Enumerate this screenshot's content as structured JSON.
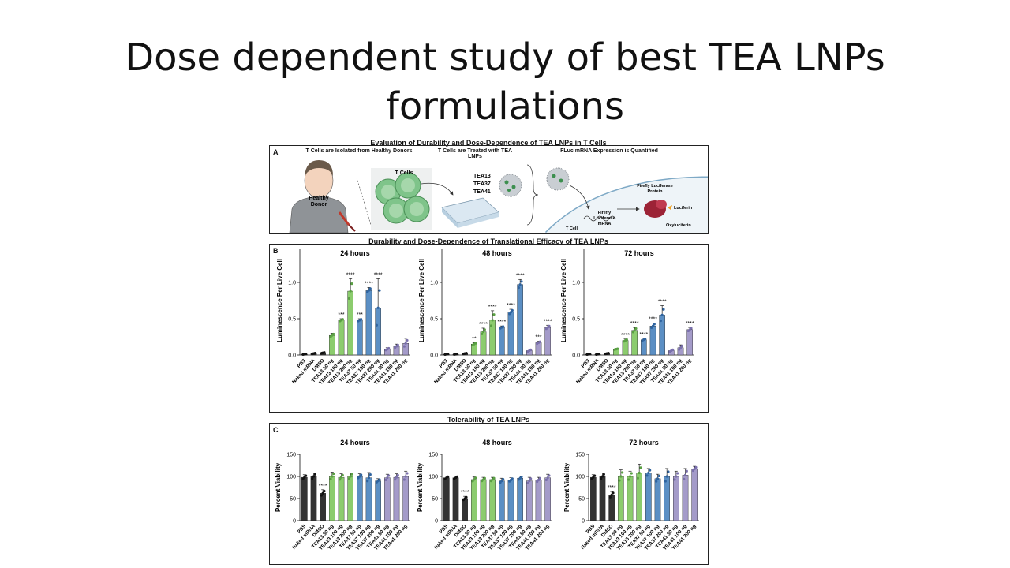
{
  "slide": {
    "title_line1": "Dose dependent study of best TEA LNPs",
    "title_line2": "formulations"
  },
  "figure": {
    "panel_a": {
      "header": "Evaluation of Durability and Dose-Dependence of TEA LNPs in T Cells",
      "letter": "A",
      "step1": "T Cells are Isolated from Healthy Donors",
      "donor_label": "Healthy Donor",
      "tcells_label": "T Cells",
      "step2": "T Cells are Treated with TEA LNPs",
      "formulations": [
        "TEA13",
        "TEA37",
        "TEA41"
      ],
      "step3": "FLuc mRNA Expression is Quantified",
      "protein_label": "Firefly Luciferase Protein",
      "mrna_label": "Firefly Luciferase mRNA",
      "luciferin_label": "Luciferin",
      "oxyluciferin_label": "Oxyluciferin",
      "tcell_label": "T Cell"
    },
    "panel_b": {
      "header": "Durability and Dose-Dependence of Translational Efficacy of TEA LNPs",
      "letter": "B"
    },
    "panel_c": {
      "header": "Tolerability of TEA LNPs",
      "letter": "C"
    }
  },
  "chart_data": [
    {
      "type": "bar",
      "panel": "B",
      "title": "24 hours",
      "ylabel": "Luminescence Per Live Cell",
      "ylim": [
        0,
        1.5
      ],
      "yticks": [
        "0.0",
        "0.5",
        "1.0",
        "1.5"
      ],
      "categories": [
        "PBS",
        "Naked mRNA",
        "DMSO",
        "TEA13 50 ng",
        "TEA13 100 ng",
        "TEA13 200 ng",
        "TEA37 50 ng",
        "TEA37 100 ng",
        "TEA37 200 ng",
        "TEA41 50 ng",
        "TEA41 100 ng",
        "TEA41 200 ng"
      ],
      "values": [
        0.01,
        0.02,
        0.03,
        0.27,
        0.48,
        0.88,
        0.48,
        0.89,
        0.65,
        0.08,
        0.12,
        0.16
      ],
      "errors": [
        0.005,
        0.01,
        0.01,
        0.03,
        0.02,
        0.17,
        0.02,
        0.04,
        0.4,
        0.02,
        0.03,
        0.07
      ],
      "significance": [
        "",
        "",
        "",
        "",
        "***",
        "****",
        "***",
        "****",
        "****",
        "",
        "",
        ""
      ]
    },
    {
      "type": "bar",
      "panel": "B",
      "title": "48 hours",
      "ylabel": "Luminescence Per Live Cell",
      "ylim": [
        0,
        1.5
      ],
      "yticks": [
        "0.0",
        "0.5",
        "1.0",
        "1.5"
      ],
      "categories": [
        "PBS",
        "Naked mRNA",
        "DMSO",
        "TEA13 50 ng",
        "TEA13 100 ng",
        "TEA13 200 ng",
        "TEA37 50 ng",
        "TEA37 100 ng",
        "TEA37 200 ng",
        "TEA41 50 ng",
        "TEA41 100 ng",
        "TEA41 200 ng"
      ],
      "values": [
        0.01,
        0.01,
        0.02,
        0.15,
        0.32,
        0.48,
        0.38,
        0.59,
        0.97,
        0.06,
        0.17,
        0.38
      ],
      "errors": [
        0.005,
        0.005,
        0.01,
        0.02,
        0.05,
        0.13,
        0.02,
        0.04,
        0.07,
        0.02,
        0.02,
        0.03
      ],
      "significance": [
        "",
        "",
        "",
        "**",
        "****",
        "****",
        "****",
        "****",
        "****",
        "",
        "***",
        "****"
      ]
    },
    {
      "type": "bar",
      "panel": "B",
      "title": "72 hours",
      "ylabel": "Luminescence Per Live Cell",
      "ylim": [
        0,
        1.5
      ],
      "yticks": [
        "0.0",
        "0.5",
        "1.0",
        "1.5"
      ],
      "categories": [
        "PBS",
        "Naked mRNA",
        "DMSO",
        "TEA13 50 ng",
        "TEA13 100 ng",
        "TEA13 200 ng",
        "TEA37 50 ng",
        "TEA37 100 ng",
        "TEA37 200 ng",
        "TEA41 50 ng",
        "TEA41 100 ng",
        "TEA41 200 ng"
      ],
      "values": [
        0.01,
        0.01,
        0.02,
        0.08,
        0.2,
        0.34,
        0.21,
        0.4,
        0.55,
        0.06,
        0.1,
        0.35
      ],
      "errors": [
        0.005,
        0.005,
        0.01,
        0.01,
        0.02,
        0.04,
        0.02,
        0.04,
        0.13,
        0.02,
        0.04,
        0.03
      ],
      "significance": [
        "",
        "",
        "",
        "",
        "****",
        "****",
        "****",
        "****",
        "****",
        "",
        "",
        "****"
      ]
    },
    {
      "type": "bar",
      "panel": "C",
      "title": "24 hours",
      "ylabel": "Percent Viability",
      "ylim": [
        0,
        150
      ],
      "yticks": [
        "0",
        "50",
        "100",
        "150"
      ],
      "categories": [
        "PBS",
        "Naked mRNA",
        "DMSO",
        "TEA13 50 ng",
        "TEA13 100 ng",
        "TEA13 200 ng",
        "TEA37 50 ng",
        "TEA37 100 ng",
        "TEA37 200 ng",
        "TEA41 50 ng",
        "TEA41 100 ng",
        "TEA41 200 ng"
      ],
      "values": [
        98,
        100,
        62,
        100,
        98,
        100,
        100,
        97,
        90,
        97,
        98,
        100
      ],
      "errors": [
        6,
        8,
        8,
        10,
        8,
        8,
        6,
        12,
        5,
        8,
        8,
        12
      ],
      "significance": [
        "",
        "",
        "****",
        "",
        "",
        "",
        "",
        "",
        "",
        "",
        "",
        ""
      ]
    },
    {
      "type": "bar",
      "panel": "C",
      "title": "48 hours",
      "ylabel": "Percent Viability",
      "ylim": [
        0,
        150
      ],
      "yticks": [
        "0",
        "50",
        "100",
        "150"
      ],
      "categories": [
        "PBS",
        "Naked mRNA",
        "DMSO",
        "TEA13 50 ng",
        "TEA13 100 ng",
        "TEA13 200 ng",
        "TEA37 50 ng",
        "TEA37 100 ng",
        "TEA37 200 ng",
        "TEA41 50 ng",
        "TEA41 100 ng",
        "TEA41 200 ng"
      ],
      "values": [
        97,
        97,
        50,
        93,
        93,
        93,
        90,
        92,
        96,
        90,
        92,
        97
      ],
      "errors": [
        4,
        4,
        5,
        6,
        5,
        5,
        6,
        5,
        5,
        8,
        6,
        8
      ],
      "significance": [
        "",
        "",
        "****",
        "",
        "",
        "",
        "",
        "",
        "",
        "",
        "",
        ""
      ]
    },
    {
      "type": "bar",
      "panel": "C",
      "title": "72 hours",
      "ylabel": "Percent Viability",
      "ylim": [
        0,
        150
      ],
      "yticks": [
        "0",
        "50",
        "100",
        "150"
      ],
      "categories": [
        "PBS",
        "Naked mRNA",
        "DMSO",
        "TEA13 50 ng",
        "TEA13 100 ng",
        "TEA13 200 ng",
        "TEA37 50 ng",
        "TEA37 100 ng",
        "TEA37 200 ng",
        "TEA41 50 ng",
        "TEA41 100 ng",
        "TEA41 200 ng"
      ],
      "values": [
        98,
        100,
        58,
        100,
        100,
        108,
        108,
        95,
        100,
        100,
        103,
        117
      ],
      "errors": [
        6,
        8,
        8,
        15,
        12,
        20,
        10,
        10,
        18,
        12,
        15,
        6
      ],
      "significance": [
        "",
        "",
        "****",
        "",
        "",
        "",
        "",
        "",
        "",
        "",
        "",
        ""
      ]
    }
  ]
}
